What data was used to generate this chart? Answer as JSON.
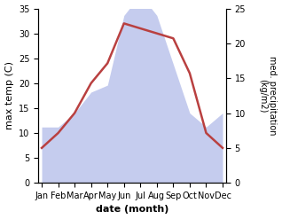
{
  "months": [
    "Jan",
    "Feb",
    "Mar",
    "Apr",
    "May",
    "Jun",
    "Jul",
    "Aug",
    "Sep",
    "Oct",
    "Nov",
    "Dec"
  ],
  "temp": [
    7,
    10,
    14,
    20,
    24,
    32,
    31,
    30,
    29,
    22,
    10,
    7
  ],
  "precip": [
    8,
    8,
    10,
    13,
    14,
    24,
    27,
    24,
    17,
    10,
    8,
    10
  ],
  "temp_color": "#b94040",
  "precip_fill_color": "#c5ccee",
  "ylabel_left": "max temp (C)",
  "ylabel_right": "med. precipitation\n(kg/m2)",
  "xlabel": "date (month)",
  "ylim_left": [
    0,
    35
  ],
  "ylim_right": [
    0,
    25
  ],
  "yticks_left": [
    0,
    5,
    10,
    15,
    20,
    25,
    30,
    35
  ],
  "yticks_right": [
    0,
    5,
    10,
    15,
    20,
    25
  ],
  "scale_factor": 1.4,
  "background_color": "#ffffff",
  "temp_linewidth": 1.8,
  "label_fontsize": 8,
  "tick_fontsize": 7
}
